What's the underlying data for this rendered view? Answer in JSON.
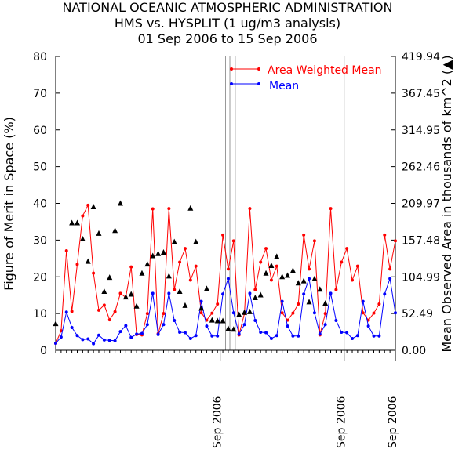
{
  "titles": [
    "NATIONAL OCEANIC ATMOSPHERIC ADMINISTRATION",
    "HMS vs. HYSPLIT (1 ug/m3 analysis)",
    "01 Sep 2006 to 15 Sep 2006"
  ],
  "chart_data": {
    "type": "line",
    "title": "NATIONAL OCEANIC ATMOSPHERIC ADMINISTRATION",
    "subtitle": "HMS vs. HYSPLIT (1 ug/m3 analysis) 01 Sep 2006 to 15 Sep 2006",
    "ylabel": "Figure of Merit in Space (%)",
    "y2label": "Mean Observed Area in thousands of km^2 (▲)",
    "ylim": [
      0,
      80
    ],
    "y2lim": [
      0.0,
      419.94
    ],
    "yticks": [
      "0",
      "10",
      "20",
      "30",
      "40",
      "50",
      "60",
      "70",
      "80"
    ],
    "y2ticks": [
      "0.00",
      "52.49",
      "104.99",
      "157.48",
      "209.97",
      "262.46",
      "314.95",
      "367.45",
      "419.94"
    ],
    "xlim": [
      0,
      63
    ],
    "xticks": [
      "Sep 2006",
      "Sep 2006",
      "Sep 2006"
    ],
    "xtick_positions": [
      30.5,
      53.5,
      63
    ],
    "vlines": [
      31.5,
      32.3,
      33.3,
      53.5
    ],
    "legend_position": "top-right",
    "colors": {
      "area_weighted": "#ff0000",
      "mean": "#0000ff",
      "area": "#000000",
      "vline": "#999999"
    },
    "series": [
      {
        "name": "Area Weighted Mean",
        "type": "line",
        "axis": "left",
        "x": [
          0,
          1,
          2,
          3,
          4,
          5,
          6,
          7,
          8,
          9,
          10,
          11,
          12,
          13,
          14,
          15,
          16,
          17,
          18,
          19,
          20,
          21,
          22,
          23,
          24,
          25,
          26,
          27,
          28,
          29,
          30,
          31,
          32,
          33,
          34,
          35,
          36,
          37,
          38,
          39,
          40,
          41,
          42,
          43,
          44,
          45,
          46,
          47,
          48,
          49,
          50,
          51,
          52,
          53,
          54,
          55,
          56,
          57,
          58,
          59,
          60,
          61,
          62,
          63
        ],
        "values": [
          1.9,
          5.3,
          27.1,
          10.6,
          23.4,
          36.6,
          39.5,
          21.0,
          10.9,
          12.3,
          8.3,
          10.5,
          15.5,
          14.4,
          22.7,
          4.3,
          4.2,
          10.0,
          38.5,
          4.5,
          10.0,
          38.6,
          16.5,
          24.0,
          27.7,
          19.1,
          22.9,
          10.2,
          8.2,
          10.1,
          12.6,
          31.4,
          22.1,
          29.8,
          4.2,
          10.0,
          38.6,
          16.5,
          24.0,
          27.7,
          19.1,
          22.9,
          10.2,
          8.2,
          10.1,
          12.6,
          31.4,
          22.1,
          29.8,
          4.2,
          10.0,
          38.6,
          16.5,
          24.0,
          27.7,
          19.1,
          22.9,
          10.2,
          8.2,
          10.1,
          12.6,
          31.4,
          22.1,
          29.8
        ]
      },
      {
        "name": "Mean",
        "type": "line",
        "axis": "left",
        "x": [
          0,
          1,
          2,
          3,
          4,
          5,
          6,
          7,
          8,
          9,
          10,
          11,
          12,
          13,
          14,
          15,
          16,
          17,
          18,
          19,
          20,
          21,
          22,
          23,
          24,
          25,
          26,
          27,
          28,
          29,
          30,
          31,
          32,
          33,
          34,
          35,
          36,
          37,
          38,
          39,
          40,
          41,
          42,
          43,
          44,
          45,
          46,
          47,
          48,
          49,
          50,
          51,
          52,
          53,
          54,
          55,
          56,
          57,
          58,
          59,
          60,
          61,
          62,
          63
        ],
        "values": [
          1.9,
          3.6,
          10.4,
          6.2,
          4.0,
          2.9,
          3.1,
          1.8,
          4.1,
          2.8,
          2.7,
          2.6,
          5.1,
          6.7,
          3.5,
          4.4,
          4.6,
          7.0,
          15.5,
          4.3,
          7.0,
          15.5,
          8.1,
          4.9,
          4.8,
          3.2,
          4.0,
          13.3,
          6.6,
          3.9,
          3.9,
          15.3,
          19.5,
          10.2,
          4.4,
          7.0,
          15.5,
          8.1,
          4.9,
          4.8,
          3.2,
          4.0,
          13.3,
          6.6,
          3.9,
          3.9,
          15.3,
          19.5,
          10.2,
          4.4,
          7.0,
          15.5,
          8.1,
          4.9,
          4.8,
          3.2,
          4.0,
          13.3,
          6.6,
          3.9,
          3.9,
          15.3,
          19.5,
          10.2
        ]
      },
      {
        "name": "Mean Observed Area",
        "type": "scatter",
        "marker": "triangle",
        "axis": "right",
        "x": [
          0,
          3,
          4,
          5,
          6,
          7,
          8,
          9,
          10,
          11,
          12,
          13,
          14,
          15,
          16,
          17,
          18,
          19,
          20,
          21,
          22,
          23,
          24,
          25,
          26,
          27,
          28,
          29,
          30,
          31,
          32,
          33,
          34,
          35,
          36,
          37,
          38,
          39,
          40,
          41,
          42,
          43,
          44,
          45,
          46,
          47,
          48,
          49,
          50
        ],
        "values": [
          38,
          182,
          182,
          159,
          127,
          205,
          167,
          84,
          104,
          171,
          210,
          76,
          80,
          63,
          110,
          123,
          135,
          138,
          140,
          106,
          155,
          84,
          64,
          203,
          155,
          60,
          88,
          43,
          42,
          42,
          31,
          30,
          51,
          54,
          55,
          75,
          79,
          110,
          121,
          134,
          105,
          107,
          114,
          96,
          99,
          69,
          102,
          87,
          67
        ]
      }
    ]
  }
}
